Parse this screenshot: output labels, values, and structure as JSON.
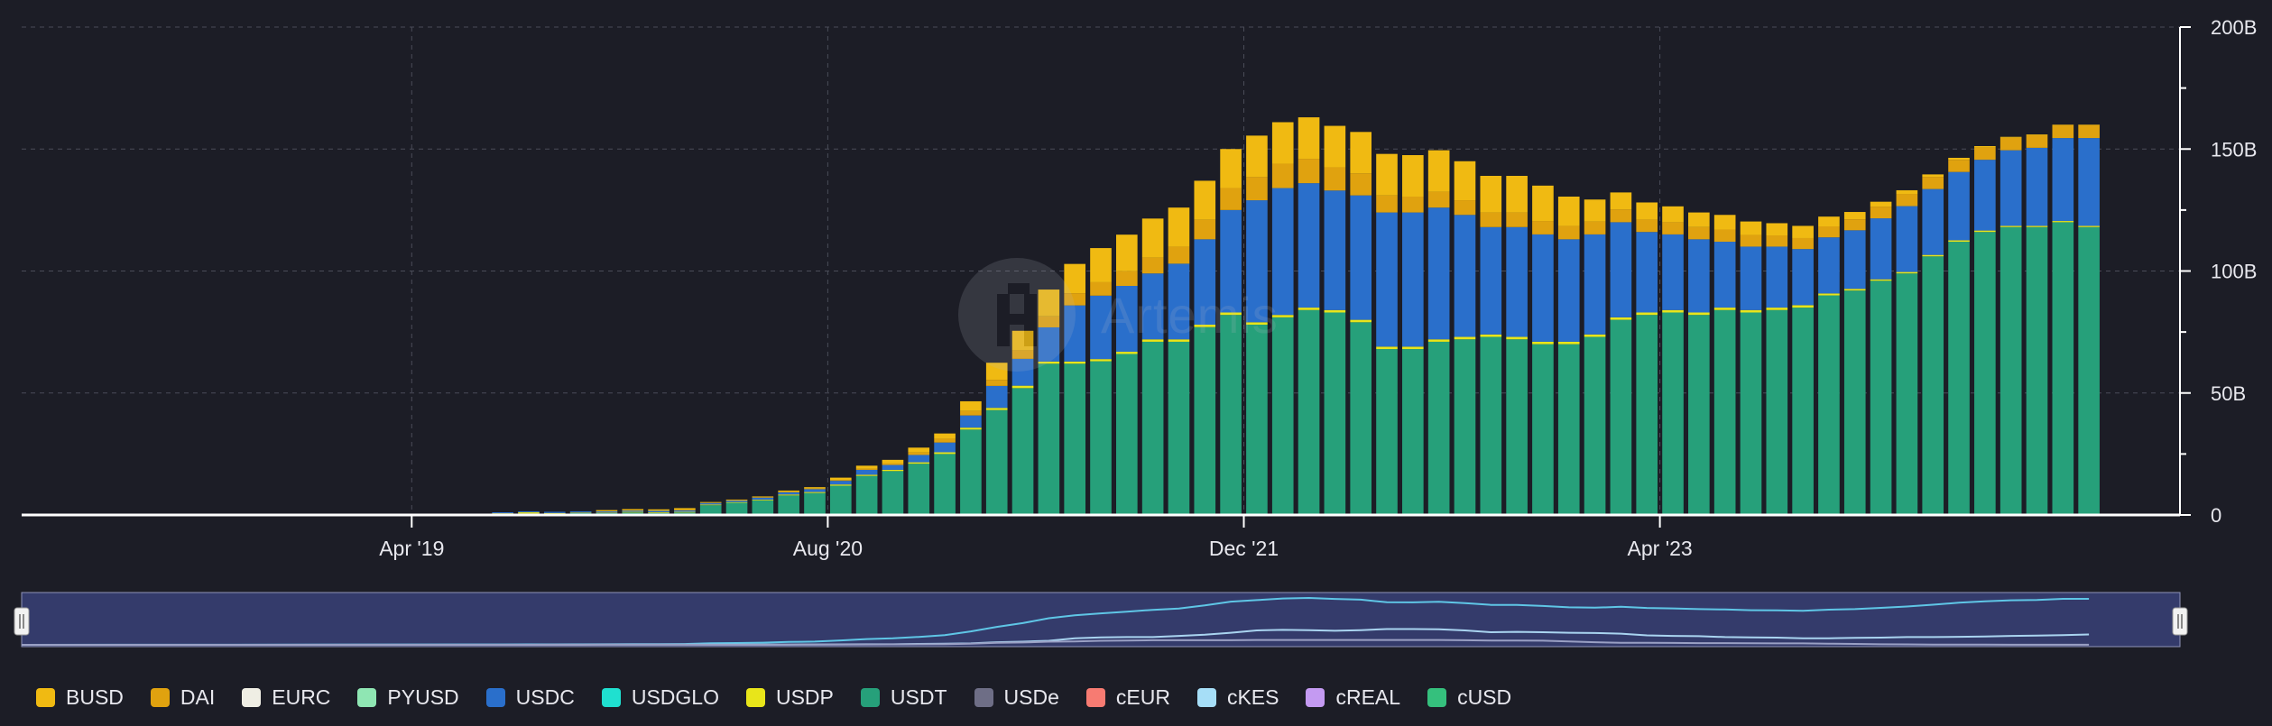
{
  "colors": {
    "background": "#1c1d26",
    "grid": "#4a4c58",
    "axis": "#ffffff",
    "navigator_fill": "#343b6b",
    "navigator_line": "#5fc6e6"
  },
  "watermark": {
    "text": "Artemis"
  },
  "chart_data": {
    "type": "bar",
    "stacked": true,
    "x_range": [
      "2018-01",
      "2024-12"
    ],
    "x_ticks": [
      "Apr '19",
      "Aug '20",
      "Dec '21",
      "Apr '23"
    ],
    "y_ticks": [
      "0",
      "50B",
      "100B",
      "150B",
      "200B"
    ],
    "ylim": [
      0,
      200
    ],
    "y_unit": "B",
    "grid": true,
    "legend_position": "bottom-left",
    "categories": [
      "2019-08",
      "2019-09",
      "2019-10",
      "2019-11",
      "2019-12",
      "2020-01",
      "2020-02",
      "2020-03",
      "2020-04",
      "2020-05",
      "2020-06",
      "2020-07",
      "2020-08",
      "2020-09",
      "2020-10",
      "2020-11",
      "2020-12",
      "2021-01",
      "2021-02",
      "2021-03",
      "2021-04",
      "2021-05",
      "2021-06",
      "2021-07",
      "2021-08",
      "2021-09",
      "2021-10",
      "2021-11",
      "2021-12",
      "2022-01",
      "2022-02",
      "2022-03",
      "2022-04",
      "2022-05",
      "2022-06",
      "2022-07",
      "2022-08",
      "2022-09",
      "2022-10",
      "2022-11",
      "2022-12",
      "2023-01",
      "2023-02",
      "2023-03",
      "2023-04",
      "2023-05",
      "2023-06",
      "2023-07",
      "2023-08",
      "2023-09",
      "2023-10",
      "2023-11",
      "2023-12",
      "2024-01",
      "2024-02",
      "2024-03",
      "2024-04",
      "2024-05",
      "2024-06",
      "2024-07",
      "2024-08",
      "2024-09"
    ],
    "series": [
      {
        "name": "USDT",
        "color": "#26a07a",
        "values": [
          0.4,
          0.6,
          0.6,
          0.8,
          0.8,
          1,
          0.8,
          1,
          4,
          5,
          6,
          8,
          9,
          12,
          16,
          18,
          21,
          25,
          35,
          43,
          52,
          62,
          62,
          63,
          66,
          71,
          71,
          77,
          82,
          78,
          81,
          84,
          83,
          79,
          68,
          68,
          71,
          72,
          73,
          72,
          70,
          70,
          73,
          80,
          82,
          83,
          82,
          84,
          83,
          84,
          85,
          90,
          92,
          96,
          99,
          106,
          112,
          116,
          118,
          118,
          120,
          118
        ],
        "bar_labels": null
      },
      {
        "name": "USDP",
        "color": "#e8e51a",
        "values": [
          0.3,
          0.5,
          0.2,
          0.2,
          0.2,
          0.3,
          0.3,
          0.3,
          0.3,
          0.3,
          0.3,
          0.4,
          0.4,
          0.5,
          0.5,
          0.5,
          0.6,
          0.7,
          0.8,
          0.9,
          1,
          0.9,
          0.9,
          0.9,
          0.9,
          1,
          1,
          1,
          1,
          1,
          1,
          1,
          1,
          1,
          1,
          1,
          1,
          1,
          1,
          1,
          1,
          1,
          1,
          1,
          1,
          1,
          1,
          1,
          1,
          1,
          1,
          0.8,
          0.7,
          0.6,
          0.6,
          0.6,
          0.6,
          0.6,
          0.5,
          0.5,
          0.5,
          0.5
        ]
      },
      {
        "name": "USDC",
        "color": "#2a6fcb",
        "values": [
          0.4,
          0.4,
          0.5,
          0.5,
          0.5,
          0.5,
          0.6,
          0.7,
          0.7,
          0.7,
          0.9,
          1,
          1.2,
          1.5,
          2,
          2,
          3,
          4,
          5,
          9,
          11,
          14,
          23,
          26,
          27,
          27,
          31,
          35,
          42,
          50,
          52,
          51,
          49,
          51,
          55,
          55,
          54,
          50,
          44,
          45,
          44,
          42,
          41,
          39,
          33,
          31,
          30,
          27,
          26,
          25,
          23,
          23,
          24,
          25,
          27,
          27,
          28,
          29,
          31,
          32,
          34,
          36
        ]
      },
      {
        "name": "DAI",
        "color": "#e0a20f",
        "values": [
          0,
          0,
          0,
          0,
          0,
          0,
          0,
          0.1,
          0.1,
          0.1,
          0.1,
          0.1,
          0.2,
          0.3,
          0.4,
          0.6,
          1,
          1.5,
          1.8,
          2.5,
          3.5,
          4.5,
          5,
          5.5,
          6,
          6.5,
          7,
          8,
          9,
          9.5,
          10,
          10,
          9.5,
          9,
          7,
          6.5,
          6.5,
          6,
          6,
          6,
          5.5,
          5.5,
          5.3,
          5.2,
          5.1,
          5,
          5,
          5,
          4.8,
          4.6,
          4.5,
          4.5,
          4.5,
          4.8,
          5,
          5,
          5,
          5,
          5.1,
          5.2,
          5.3,
          5.3
        ]
      },
      {
        "name": "BUSD",
        "color": "#f0ba12",
        "values": [
          0,
          0,
          0,
          0,
          0.5,
          0.6,
          0.6,
          0.7,
          0.2,
          0.2,
          0.3,
          0.5,
          0.6,
          1,
          1.3,
          1.5,
          2,
          2.2,
          4,
          7,
          8,
          11,
          12,
          14,
          15,
          16,
          16,
          16,
          16,
          17,
          17,
          17,
          17,
          17,
          17,
          17,
          17,
          16,
          15,
          15,
          14.5,
          12,
          9,
          7,
          7,
          6.5,
          6,
          6,
          5.5,
          5,
          5,
          4,
          3,
          2,
          1.5,
          1,
          0.8,
          0.6,
          0.4,
          0.3,
          0.2,
          0.2
        ]
      },
      {
        "name": "USDe",
        "color": "#6e6e86",
        "values": [
          0,
          0,
          0,
          0,
          0,
          0,
          0,
          0,
          0,
          0,
          0,
          0,
          0,
          0,
          0,
          0,
          0,
          0,
          0,
          0,
          0,
          0,
          0,
          0,
          0,
          0,
          0,
          0,
          0,
          0,
          0,
          0,
          0,
          0,
          0,
          0,
          0,
          0,
          0,
          0,
          0,
          0,
          0,
          0,
          0,
          0,
          0,
          0,
          0,
          0,
          0,
          0,
          0,
          0,
          0,
          0,
          0,
          0,
          0,
          0,
          0,
          0
        ]
      }
    ],
    "legend": [
      {
        "name": "BUSD",
        "color": "#f0ba12"
      },
      {
        "name": "DAI",
        "color": "#e0a20f"
      },
      {
        "name": "EURC",
        "color": "#efeee4"
      },
      {
        "name": "PYUSD",
        "color": "#8fe6b3"
      },
      {
        "name": "USDC",
        "color": "#2a6fcb"
      },
      {
        "name": "USDGLO",
        "color": "#1fe0d0"
      },
      {
        "name": "USDP",
        "color": "#e8e51a"
      },
      {
        "name": "USDT",
        "color": "#26a07a"
      },
      {
        "name": "USDe",
        "color": "#6e6e86"
      },
      {
        "name": "cEUR",
        "color": "#f77b72"
      },
      {
        "name": "cKES",
        "color": "#a6def7"
      },
      {
        "name": "cREAL",
        "color": "#c49af2"
      },
      {
        "name": "cUSD",
        "color": "#35c07d"
      }
    ]
  }
}
